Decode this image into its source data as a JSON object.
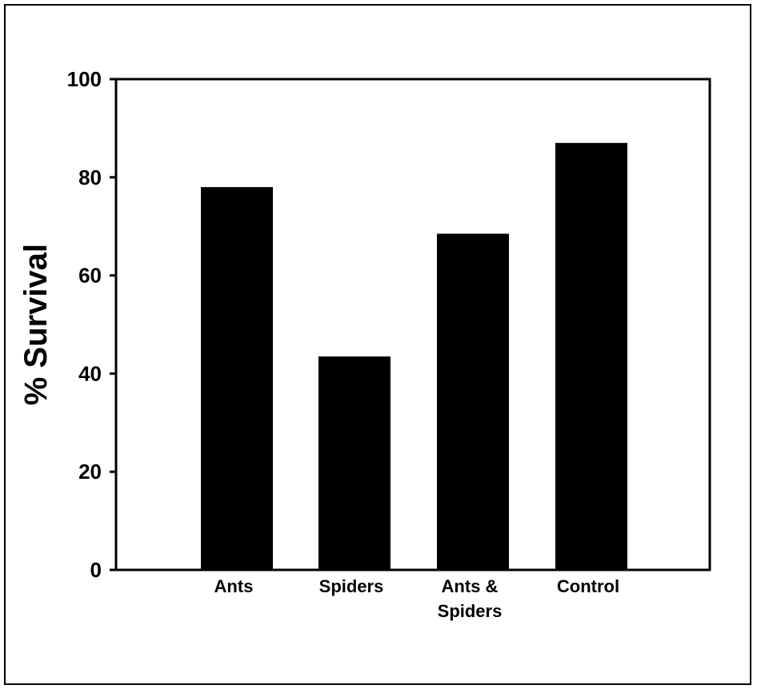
{
  "chart_data": {
    "type": "bar",
    "title": "",
    "xlabel": "",
    "ylabel": "% Survival",
    "categories": [
      [
        "Ants"
      ],
      [
        "Spiders"
      ],
      [
        "Ants &",
        "Spiders"
      ],
      [
        "Control"
      ]
    ],
    "values": [
      78,
      43.5,
      68.5,
      87
    ],
    "ylim": [
      0,
      100
    ],
    "yticks": [
      0,
      20,
      40,
      60,
      80,
      100
    ],
    "grid": false,
    "bar_color": "#000000"
  }
}
